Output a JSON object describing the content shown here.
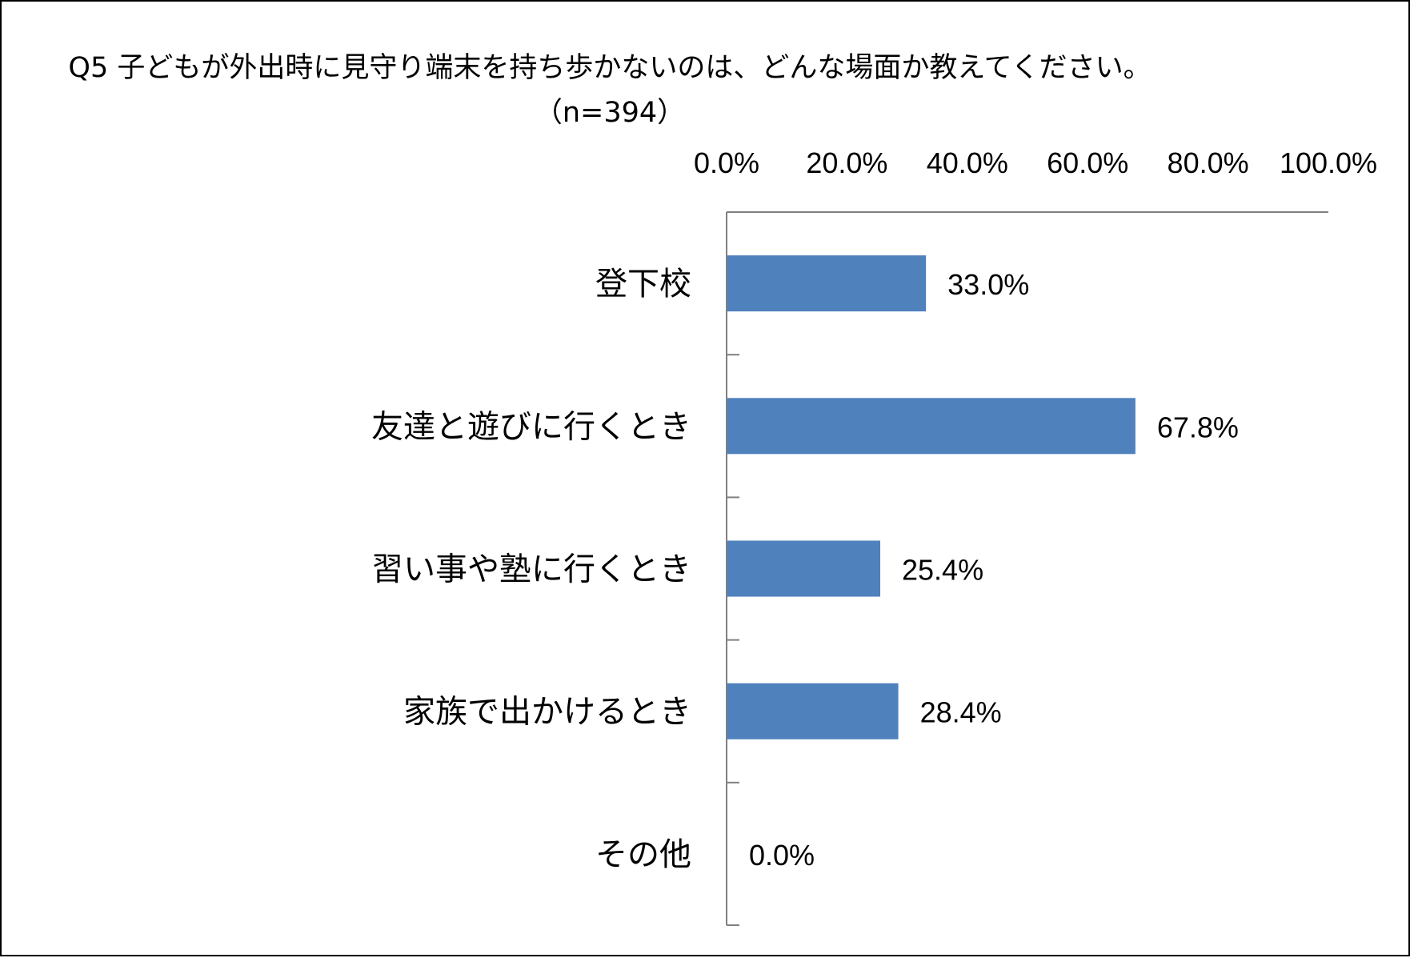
{
  "chart_data": {
    "type": "bar",
    "orientation": "horizontal",
    "title": "Q5 子どもが外出時に見守り端末を持ち歩かないのは、どんな場面か教えてください。（n=394）",
    "categories": [
      "登下校",
      "友達と遊びに行くとき",
      "習い事や塾に行くとき",
      "家族で出かけるとき",
      "その他"
    ],
    "values": [
      33.0,
      67.8,
      25.4,
      28.4,
      0.0
    ],
    "data_labels": [
      "33.0%",
      "67.8%",
      "25.4%",
      "28.4%",
      "0.0%"
    ],
    "xlim": [
      0,
      100
    ],
    "x_ticks": [
      0,
      20,
      40,
      60,
      80,
      100
    ],
    "x_tick_labels": [
      "0.0%",
      "20.0%",
      "40.0%",
      "60.0%",
      "80.0%",
      "100.0%"
    ],
    "x_axis_position": "top",
    "xlabel": "",
    "ylabel": "",
    "grid": false,
    "legend": "none",
    "bar_color": "#4F81BD",
    "axis_color": "#808080"
  }
}
